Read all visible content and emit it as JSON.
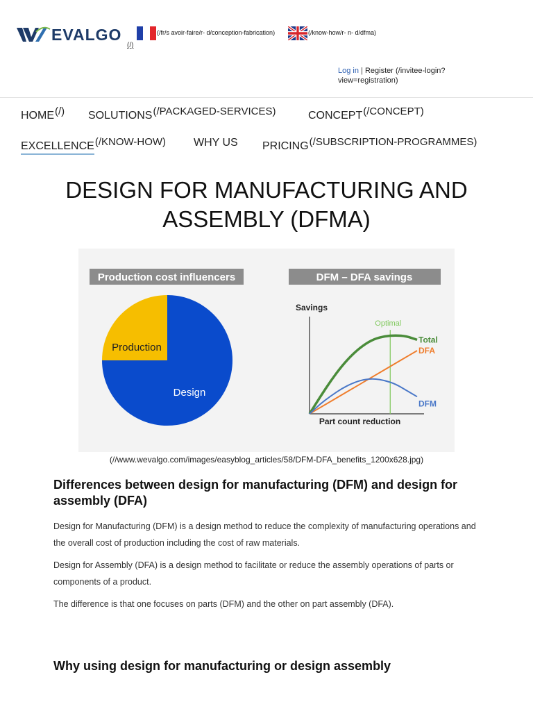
{
  "header": {
    "logo_text": "EVALGO",
    "logo_link": "(/)",
    "lang_fr_link": "(/fr/s avoir-faire/r- d/conception-fabrication)",
    "lang_en_link": "(/know-how/r- n- d/dfma)",
    "login": "Log in",
    "separator": "|",
    "register": "Register (/invitee-login? view=registration)"
  },
  "nav": [
    {
      "label": "HOME",
      "href": "(/)"
    },
    {
      "label": "SOLUTIONS",
      "href": "(/PACKAGED-SERVICES)"
    },
    {
      "label": "CONCEPT",
      "href": "(/CONCEPT)"
    },
    {
      "label": "EXCELLENCE",
      "href": "(/KNOW-HOW)"
    },
    {
      "label": "WHY US",
      "href": ""
    },
    {
      "label": "PRICING",
      "href": "(/SUBSCRIPTION-PROGRAMMES)"
    }
  ],
  "page_title": "DESIGN FOR MANUFACTURING AND ASSEMBLY (DFMA)",
  "figure": {
    "caption": "(//www.wevalgo.com/images/easyblog_articles/58/DFM-DFA_benefits_1200x628.jpg)"
  },
  "chart_data": [
    {
      "type": "pie",
      "title": "Production cost influencers",
      "categories": [
        "Production",
        "Design"
      ],
      "values": [
        25,
        75
      ],
      "colors": [
        "#f6be00",
        "#0a4bcc"
      ]
    },
    {
      "type": "line",
      "title": "DFM – DFA savings",
      "xlabel": "Part count reduction",
      "ylabel": "Savings",
      "x": [
        0,
        1,
        2,
        3,
        4,
        5,
        6,
        7,
        8,
        9,
        10
      ],
      "xlim": [
        0,
        10
      ],
      "ylim": [
        0,
        10
      ],
      "series": [
        {
          "name": "Total",
          "color": "#4a8c3a",
          "values": [
            0,
            1.9,
            3.7,
            5.3,
            6.6,
            7.6,
            8.3,
            8.6,
            8.7,
            8.6,
            8.2
          ]
        },
        {
          "name": "DFA",
          "color": "#ef7d2c",
          "values": [
            0,
            0.7,
            1.4,
            2.1,
            2.8,
            3.5,
            4.2,
            4.9,
            5.6,
            6.3,
            7.0
          ]
        },
        {
          "name": "DFM",
          "color": "#4a78c8",
          "values": [
            0,
            1.1,
            2.0,
            2.8,
            3.4,
            3.8,
            3.9,
            3.7,
            3.3,
            2.6,
            1.9
          ]
        }
      ],
      "annotation": {
        "label": "Optimal",
        "x": 7.5,
        "color": "#7ec85a"
      }
    }
  ],
  "sections": [
    {
      "heading": "Differences between design for manufacturing (DFM) and design for assembly (DFA)",
      "paragraphs": [
        "Design for Manufacturing (DFM) is a design method to reduce the complexity of manufacturing operations and the overall cost of production including the cost of raw materials.",
        "Design for Assembly (DFA) is a design method to facilitate or reduce the assembly operations of parts or components of a product.",
        "The difference is that one focuses on parts (DFM) and the other on part assembly (DFA)."
      ]
    },
    {
      "heading": "Why using design for manufacturing or design assembly"
    }
  ]
}
